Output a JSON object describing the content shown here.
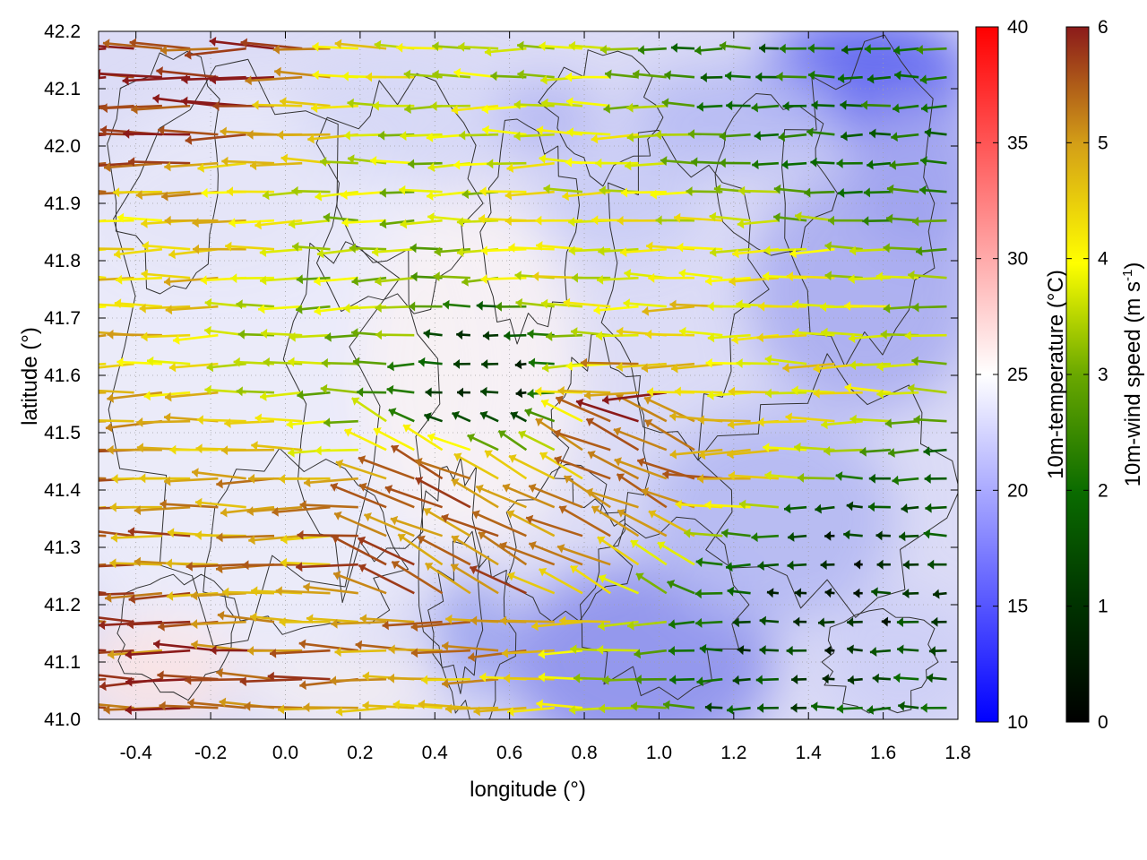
{
  "chart_data": {
    "type": "heatmap",
    "title": "",
    "xlabel": "longitude (°)",
    "ylabel": "latitude (°)",
    "xlim": [
      -0.5,
      1.8
    ],
    "ylim": [
      41.0,
      42.2
    ],
    "x_ticks": [
      "-0.4",
      "-0.2",
      "0.0",
      "0.2",
      "0.4",
      "0.6",
      "0.8",
      "1.0",
      "1.2",
      "1.4",
      "1.6",
      "1.8"
    ],
    "x_tick_values": [
      -0.4,
      -0.2,
      0.0,
      0.2,
      0.4,
      0.6,
      0.8,
      1.0,
      1.2,
      1.4,
      1.6,
      1.8
    ],
    "y_ticks": [
      "41.0",
      "41.1",
      "41.2",
      "41.3",
      "41.4",
      "41.5",
      "41.6",
      "41.7",
      "41.8",
      "41.9",
      "42.0",
      "42.1",
      "42.2"
    ],
    "y_tick_values": [
      41.0,
      41.1,
      41.2,
      41.3,
      41.4,
      41.5,
      41.6,
      41.7,
      41.8,
      41.9,
      42.0,
      42.1,
      42.2
    ],
    "grid": true,
    "layers": [
      "10m-temperature color field",
      "terrain contour lines",
      "10m-wind vectors colored by speed"
    ],
    "colorbars": [
      {
        "label": "10m-temperature (°C)",
        "range": [
          10,
          40
        ],
        "ticks": [
          "10",
          "15",
          "20",
          "25",
          "30",
          "35",
          "40"
        ],
        "tick_values": [
          10,
          15,
          20,
          25,
          30,
          35,
          40
        ],
        "colors": [
          "#0000ff",
          "#ffffff",
          "#ff0000"
        ]
      },
      {
        "label_main": "10m-wind speed (m s",
        "label_sup": "-1",
        "label_end": ")",
        "range": [
          0,
          6
        ],
        "ticks": [
          "0",
          "1",
          "2",
          "3",
          "4",
          "5",
          "6"
        ],
        "tick_values": [
          0,
          1,
          2,
          3,
          4,
          5,
          6
        ],
        "colors": [
          "#000000",
          "#005500",
          "#2e8b00",
          "#9acd00",
          "#ffff00",
          "#d4a017",
          "#8b1a1a"
        ]
      }
    ],
    "wind_direction": "predominantly from the east (westward vectors)",
    "sample_field": [
      {
        "lon": -0.4,
        "lat": 42.1,
        "speed": 5.9,
        "temp": 22
      },
      {
        "lon": -0.3,
        "lat": 41.8,
        "speed": 4.5,
        "temp": 22
      },
      {
        "lon": -0.3,
        "lat": 41.3,
        "speed": 5.2,
        "temp": 23
      },
      {
        "lon": -0.35,
        "lat": 41.05,
        "speed": 5.6,
        "temp": 27
      },
      {
        "lon": 0.2,
        "lat": 41.7,
        "speed": 3.4,
        "temp": 22
      },
      {
        "lon": 0.45,
        "lat": 41.35,
        "speed": 5.5,
        "temp": 21
      },
      {
        "lon": 0.55,
        "lat": 41.6,
        "speed": 1.0,
        "temp": 24
      },
      {
        "lon": 0.8,
        "lat": 41.8,
        "speed": 4.0,
        "temp": 22
      },
      {
        "lon": 1.0,
        "lat": 41.5,
        "speed": 5.7,
        "temp": 20
      },
      {
        "lon": 1.2,
        "lat": 41.6,
        "speed": 4.2,
        "temp": 19
      },
      {
        "lon": 1.5,
        "lat": 42.15,
        "speed": 2.0,
        "temp": 14
      },
      {
        "lon": 1.5,
        "lat": 41.2,
        "speed": 0.8,
        "temp": 17
      },
      {
        "lon": 1.7,
        "lat": 41.05,
        "speed": 1.8,
        "temp": 19
      }
    ]
  },
  "colors": {
    "temp_cold": "#0000ff",
    "temp_mid": "#ffffff",
    "temp_warm": "#ff0000",
    "contour": "#333333",
    "grid": "#a0a0a0"
  }
}
